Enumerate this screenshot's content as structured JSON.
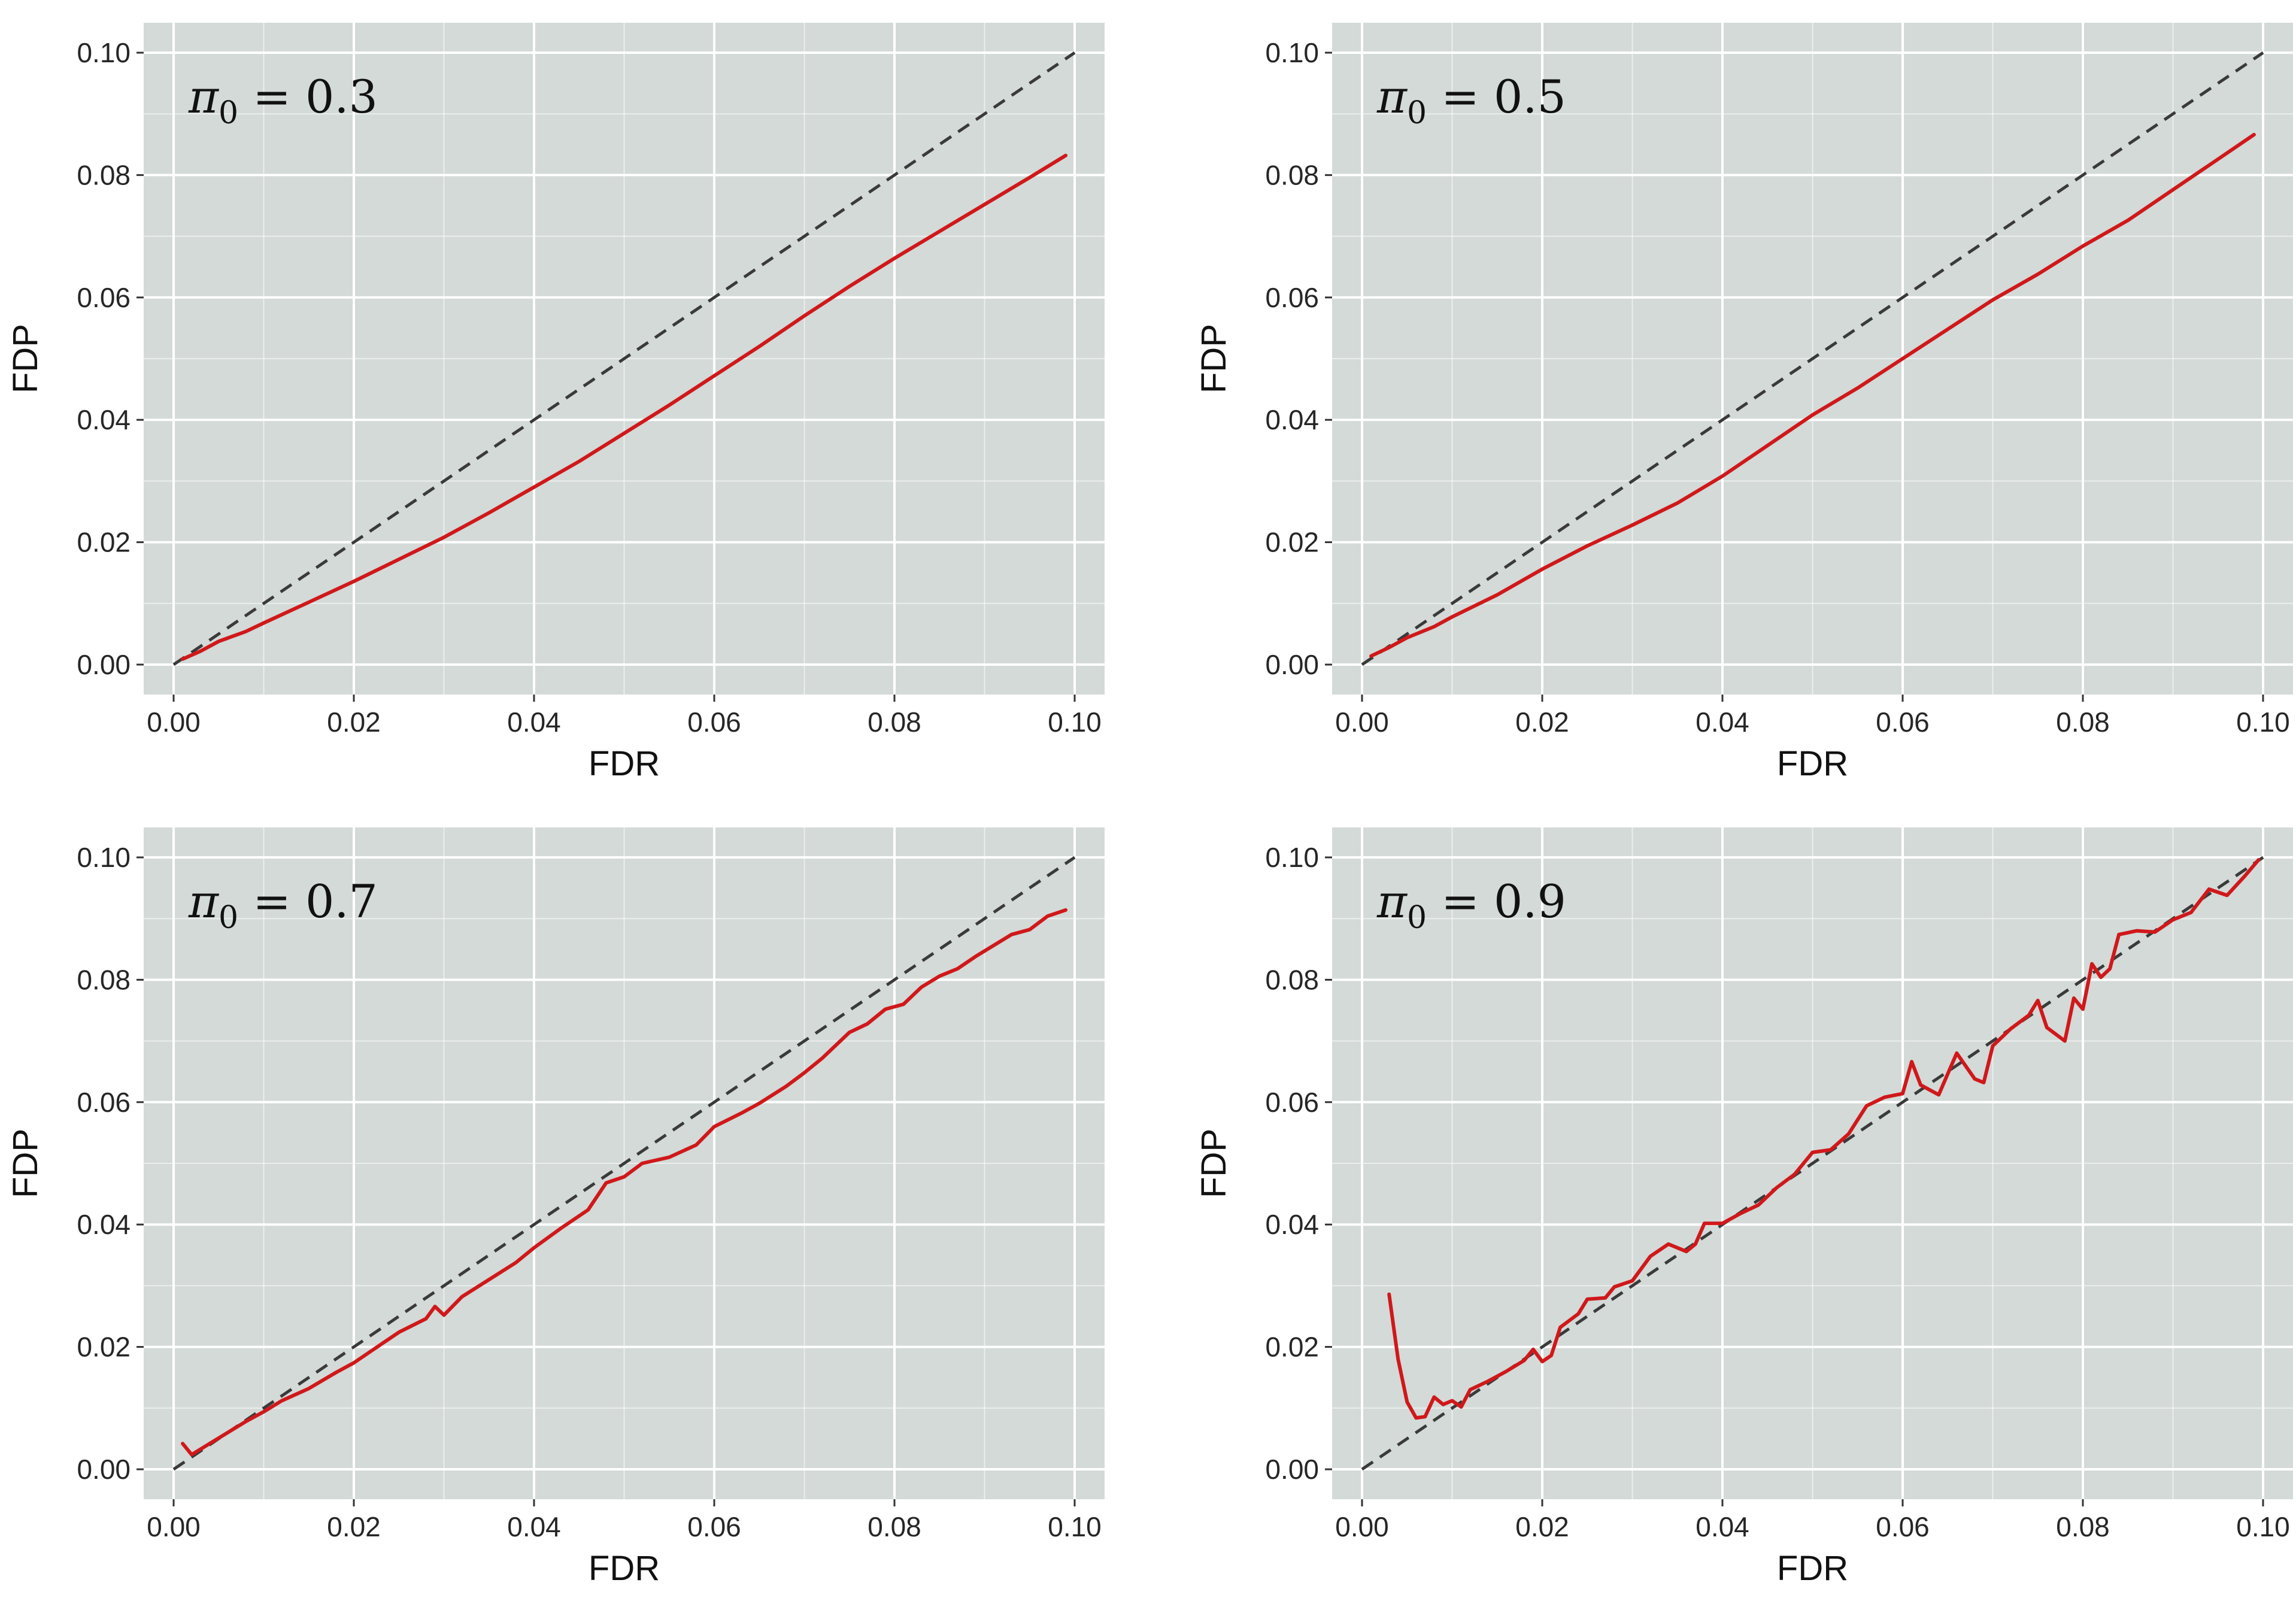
{
  "figure": {
    "background": "#ffffff",
    "panel_background": "#d3dad7",
    "grid_color": "#ffffff",
    "estimate_color": "#d0181b",
    "reference_color": "#3a3a3a"
  },
  "chart_data": [
    {
      "type": "line",
      "annotation": {
        "symbol": "π",
        "subscript": "0",
        "rest": " = 0.3"
      },
      "xlabel": "FDR",
      "ylabel": "FDP",
      "xlim": [
        0,
        0.1
      ],
      "ylim": [
        0,
        0.1
      ],
      "xticks": [
        "0.00",
        "0.02",
        "0.04",
        "0.06",
        "0.08",
        "0.10"
      ],
      "yticks": [
        "0.00",
        "0.02",
        "0.04",
        "0.06",
        "0.08",
        "0.10"
      ],
      "grid": true,
      "series": [
        {
          "style": "dashed",
          "color": "#3a3a3a",
          "x": [
            0,
            0.1
          ],
          "y": [
            0,
            0.1
          ]
        },
        {
          "style": "solid",
          "color": "#d0181b",
          "x": [
            0.001,
            0.003,
            0.005,
            0.008,
            0.01,
            0.015,
            0.02,
            0.025,
            0.03,
            0.035,
            0.04,
            0.045,
            0.05,
            0.055,
            0.06,
            0.065,
            0.07,
            0.075,
            0.08,
            0.085,
            0.09,
            0.095,
            0.099
          ],
          "y": [
            0.0009,
            0.0022,
            0.0038,
            0.0054,
            0.0068,
            0.0102,
            0.0136,
            0.0172,
            0.0208,
            0.0248,
            0.029,
            0.0332,
            0.0378,
            0.0424,
            0.0472,
            0.052,
            0.057,
            0.0618,
            0.0664,
            0.0708,
            0.0752,
            0.0796,
            0.0832
          ]
        }
      ]
    },
    {
      "type": "line",
      "annotation": {
        "symbol": "π",
        "subscript": "0",
        "rest": " = 0.5"
      },
      "xlabel": "FDR",
      "ylabel": "FDP",
      "xlim": [
        0,
        0.1
      ],
      "ylim": [
        0,
        0.1
      ],
      "xticks": [
        "0.00",
        "0.02",
        "0.04",
        "0.06",
        "0.08",
        "0.10"
      ],
      "yticks": [
        "0.00",
        "0.02",
        "0.04",
        "0.06",
        "0.08",
        "0.10"
      ],
      "grid": true,
      "series": [
        {
          "style": "dashed",
          "color": "#3a3a3a",
          "x": [
            0,
            0.1
          ],
          "y": [
            0,
            0.1
          ]
        },
        {
          "style": "solid",
          "color": "#d0181b",
          "x": [
            0.001,
            0.003,
            0.005,
            0.008,
            0.01,
            0.015,
            0.02,
            0.025,
            0.03,
            0.035,
            0.04,
            0.045,
            0.05,
            0.055,
            0.06,
            0.065,
            0.07,
            0.075,
            0.08,
            0.085,
            0.09,
            0.095,
            0.099
          ],
          "y": [
            0.0014,
            0.0028,
            0.0044,
            0.0062,
            0.0078,
            0.0114,
            0.0156,
            0.0194,
            0.0228,
            0.0264,
            0.0308,
            0.0358,
            0.0408,
            0.0452,
            0.05,
            0.0548,
            0.0596,
            0.0638,
            0.0684,
            0.0726,
            0.0776,
            0.0826,
            0.0866
          ]
        }
      ]
    },
    {
      "type": "line",
      "annotation": {
        "symbol": "π",
        "subscript": "0",
        "rest": " = 0.7"
      },
      "xlabel": "FDR",
      "ylabel": "FDP",
      "xlim": [
        0,
        0.1
      ],
      "ylim": [
        0,
        0.1
      ],
      "xticks": [
        "0.00",
        "0.02",
        "0.04",
        "0.06",
        "0.08",
        "0.10"
      ],
      "yticks": [
        "0.00",
        "0.02",
        "0.04",
        "0.06",
        "0.08",
        "0.10"
      ],
      "grid": true,
      "series": [
        {
          "style": "dashed",
          "color": "#3a3a3a",
          "x": [
            0,
            0.1
          ],
          "y": [
            0,
            0.1
          ]
        },
        {
          "style": "solid",
          "color": "#d0181b",
          "x": [
            0.001,
            0.002,
            0.004,
            0.006,
            0.008,
            0.01,
            0.012,
            0.015,
            0.018,
            0.02,
            0.022,
            0.025,
            0.028,
            0.029,
            0.03,
            0.032,
            0.035,
            0.038,
            0.04,
            0.043,
            0.046,
            0.048,
            0.05,
            0.052,
            0.055,
            0.058,
            0.06,
            0.063,
            0.065,
            0.068,
            0.07,
            0.072,
            0.075,
            0.077,
            0.079,
            0.081,
            0.083,
            0.085,
            0.087,
            0.089,
            0.091,
            0.093,
            0.095,
            0.097,
            0.099
          ],
          "y": [
            0.0042,
            0.0024,
            0.0042,
            0.006,
            0.0078,
            0.0094,
            0.0112,
            0.0132,
            0.0158,
            0.0174,
            0.0194,
            0.0224,
            0.0246,
            0.0266,
            0.0252,
            0.0282,
            0.031,
            0.0338,
            0.0362,
            0.0394,
            0.0424,
            0.0468,
            0.0478,
            0.05,
            0.051,
            0.053,
            0.056,
            0.0582,
            0.0598,
            0.0626,
            0.0648,
            0.0672,
            0.0714,
            0.0728,
            0.0752,
            0.076,
            0.0788,
            0.0806,
            0.0818,
            0.0838,
            0.0856,
            0.0874,
            0.0882,
            0.0904,
            0.0914
          ]
        }
      ]
    },
    {
      "type": "line",
      "annotation": {
        "symbol": "π",
        "subscript": "0",
        "rest": " = 0.9"
      },
      "xlabel": "FDR",
      "ylabel": "FDP",
      "xlim": [
        0,
        0.1
      ],
      "ylim": [
        0,
        0.1
      ],
      "xticks": [
        "0.00",
        "0.02",
        "0.04",
        "0.06",
        "0.08",
        "0.10"
      ],
      "yticks": [
        "0.00",
        "0.02",
        "0.04",
        "0.06",
        "0.08",
        "0.10"
      ],
      "grid": true,
      "series": [
        {
          "style": "dashed",
          "color": "#3a3a3a",
          "x": [
            0,
            0.1
          ],
          "y": [
            0,
            0.1
          ]
        },
        {
          "style": "solid",
          "color": "#d0181b",
          "x": [
            0.003,
            0.004,
            0.005,
            0.006,
            0.007,
            0.008,
            0.009,
            0.01,
            0.011,
            0.012,
            0.014,
            0.016,
            0.018,
            0.019,
            0.02,
            0.021,
            0.022,
            0.024,
            0.025,
            0.027,
            0.028,
            0.03,
            0.032,
            0.034,
            0.036,
            0.037,
            0.038,
            0.04,
            0.042,
            0.044,
            0.046,
            0.048,
            0.05,
            0.052,
            0.054,
            0.056,
            0.058,
            0.06,
            0.061,
            0.062,
            0.064,
            0.066,
            0.068,
            0.069,
            0.07,
            0.072,
            0.074,
            0.075,
            0.076,
            0.078,
            0.079,
            0.08,
            0.081,
            0.082,
            0.083,
            0.084,
            0.086,
            0.088,
            0.09,
            0.092,
            0.094,
            0.096,
            0.098,
            0.0995
          ],
          "y": [
            0.0286,
            0.018,
            0.011,
            0.0084,
            0.0086,
            0.0118,
            0.0106,
            0.0112,
            0.0102,
            0.013,
            0.0144,
            0.016,
            0.0178,
            0.0196,
            0.0176,
            0.0186,
            0.0232,
            0.0254,
            0.0278,
            0.028,
            0.0298,
            0.0308,
            0.0348,
            0.0368,
            0.0356,
            0.0368,
            0.0402,
            0.0402,
            0.0418,
            0.0432,
            0.046,
            0.0482,
            0.0518,
            0.0522,
            0.0548,
            0.0594,
            0.0608,
            0.0614,
            0.0666,
            0.0628,
            0.0612,
            0.068,
            0.0638,
            0.0632,
            0.0692,
            0.072,
            0.0742,
            0.0766,
            0.0722,
            0.07,
            0.077,
            0.0752,
            0.0826,
            0.0804,
            0.0818,
            0.0874,
            0.088,
            0.0878,
            0.0898,
            0.091,
            0.0948,
            0.0938,
            0.097,
            0.0996
          ]
        }
      ]
    }
  ]
}
